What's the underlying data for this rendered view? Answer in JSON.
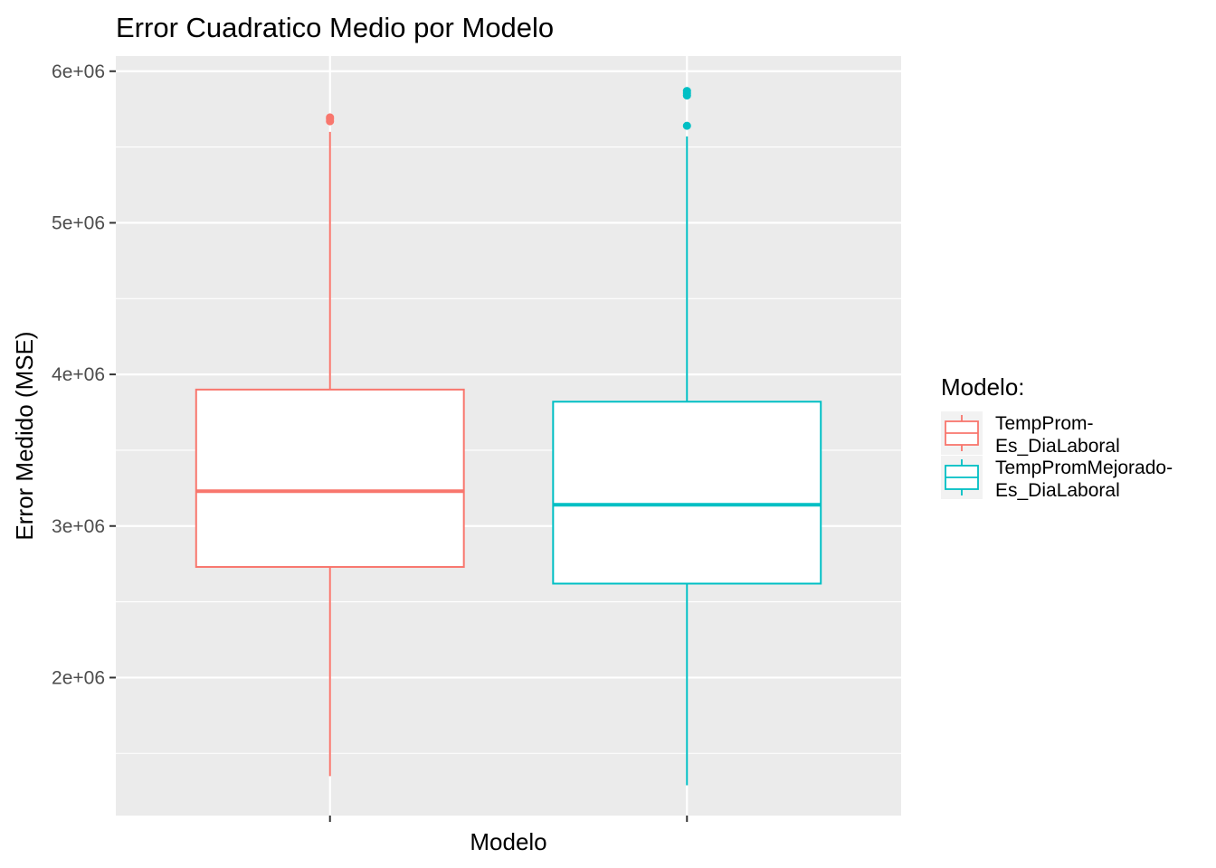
{
  "chart_data": {
    "type": "boxplot",
    "title": "Error Cuadratico Medio por Modelo",
    "xlabel": "Modelo",
    "ylabel": "Error Medido (MSE)",
    "ylim": [
      1090000,
      6100000
    ],
    "yticks": [
      2000000,
      3000000,
      4000000,
      5000000,
      6000000
    ],
    "ytick_labels": [
      "2e+06",
      "3e+06",
      "4e+06",
      "5e+06",
      "6e+06"
    ],
    "grid": true,
    "legend": {
      "title": "Modelo:",
      "position": "right",
      "entries": [
        [
          "TempProm-",
          "Es_DiaLaboral"
        ],
        [
          "TempPromMejorado-",
          "Es_DiaLaboral"
        ]
      ]
    },
    "series": [
      {
        "color": "#F8766D",
        "min": 1350000,
        "q1": 2730000,
        "median": 3230000,
        "q3": 3900000,
        "max": 5600000,
        "outliers": [
          5670000,
          5685000,
          5695000
        ]
      },
      {
        "color": "#00BFC4",
        "min": 1290000,
        "q1": 2620000,
        "median": 3140000,
        "q3": 3820000,
        "max": 5570000,
        "outliers": [
          5640000,
          5840000,
          5855000,
          5870000
        ]
      }
    ]
  }
}
